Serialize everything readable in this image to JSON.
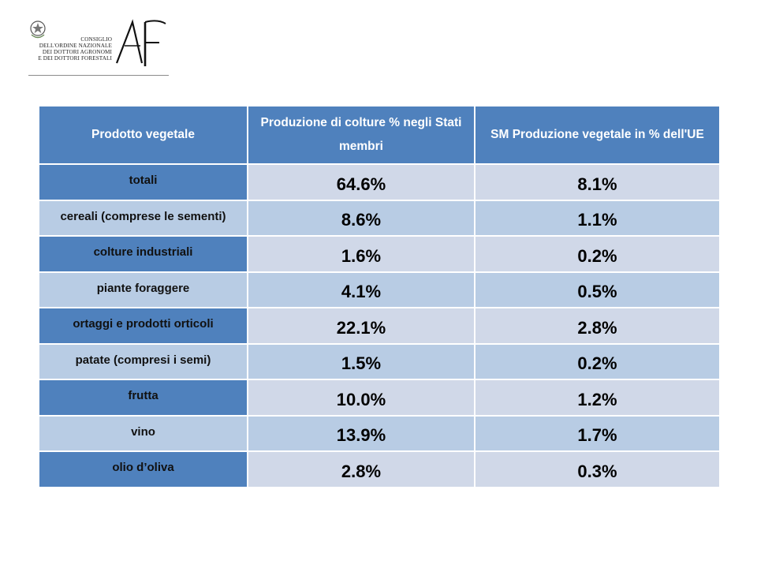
{
  "logo": {
    "org_lines": [
      "CONSIGLIO",
      "DELL'ORDINE NAZIONALE",
      "DEI DOTTORI AGRONOMI",
      "E DEI DOTTORI FORESTALI"
    ],
    "monogram": "AF",
    "emblem_icon": "italian-republic-emblem-icon"
  },
  "table": {
    "headers": [
      "Prodotto vegetale",
      "Produzione di colture % negli Stati membri",
      "SM Produzione vegetale in % dell'UE"
    ],
    "rows": [
      {
        "label": "totali",
        "col1": "64.6%",
        "col2": "8.1%"
      },
      {
        "label": "cereali (comprese le sementi)",
        "col1": "8.6%",
        "col2": "1.1%"
      },
      {
        "label": "colture industriali",
        "col1": "1.6%",
        "col2": "0.2%"
      },
      {
        "label": "piante foraggere",
        "col1": "4.1%",
        "col2": "0.5%"
      },
      {
        "label": "ortaggi e prodotti orticoli",
        "col1": "22.1%",
        "col2": "2.8%"
      },
      {
        "label": "patate (compresi i semi)",
        "col1": "1.5%",
        "col2": "0.2%"
      },
      {
        "label": "frutta",
        "col1": "10.0%",
        "col2": "1.2%"
      },
      {
        "label": "vino",
        "col1": "13.9%",
        "col2": "1.7%"
      },
      {
        "label": "olio d’oliva",
        "col1": "2.8%",
        "col2": "0.3%"
      }
    ]
  },
  "colors": {
    "header_blue": "#4f81bd",
    "light_blue": "#b8cce4",
    "pale_blue": "#d0d8e8"
  }
}
